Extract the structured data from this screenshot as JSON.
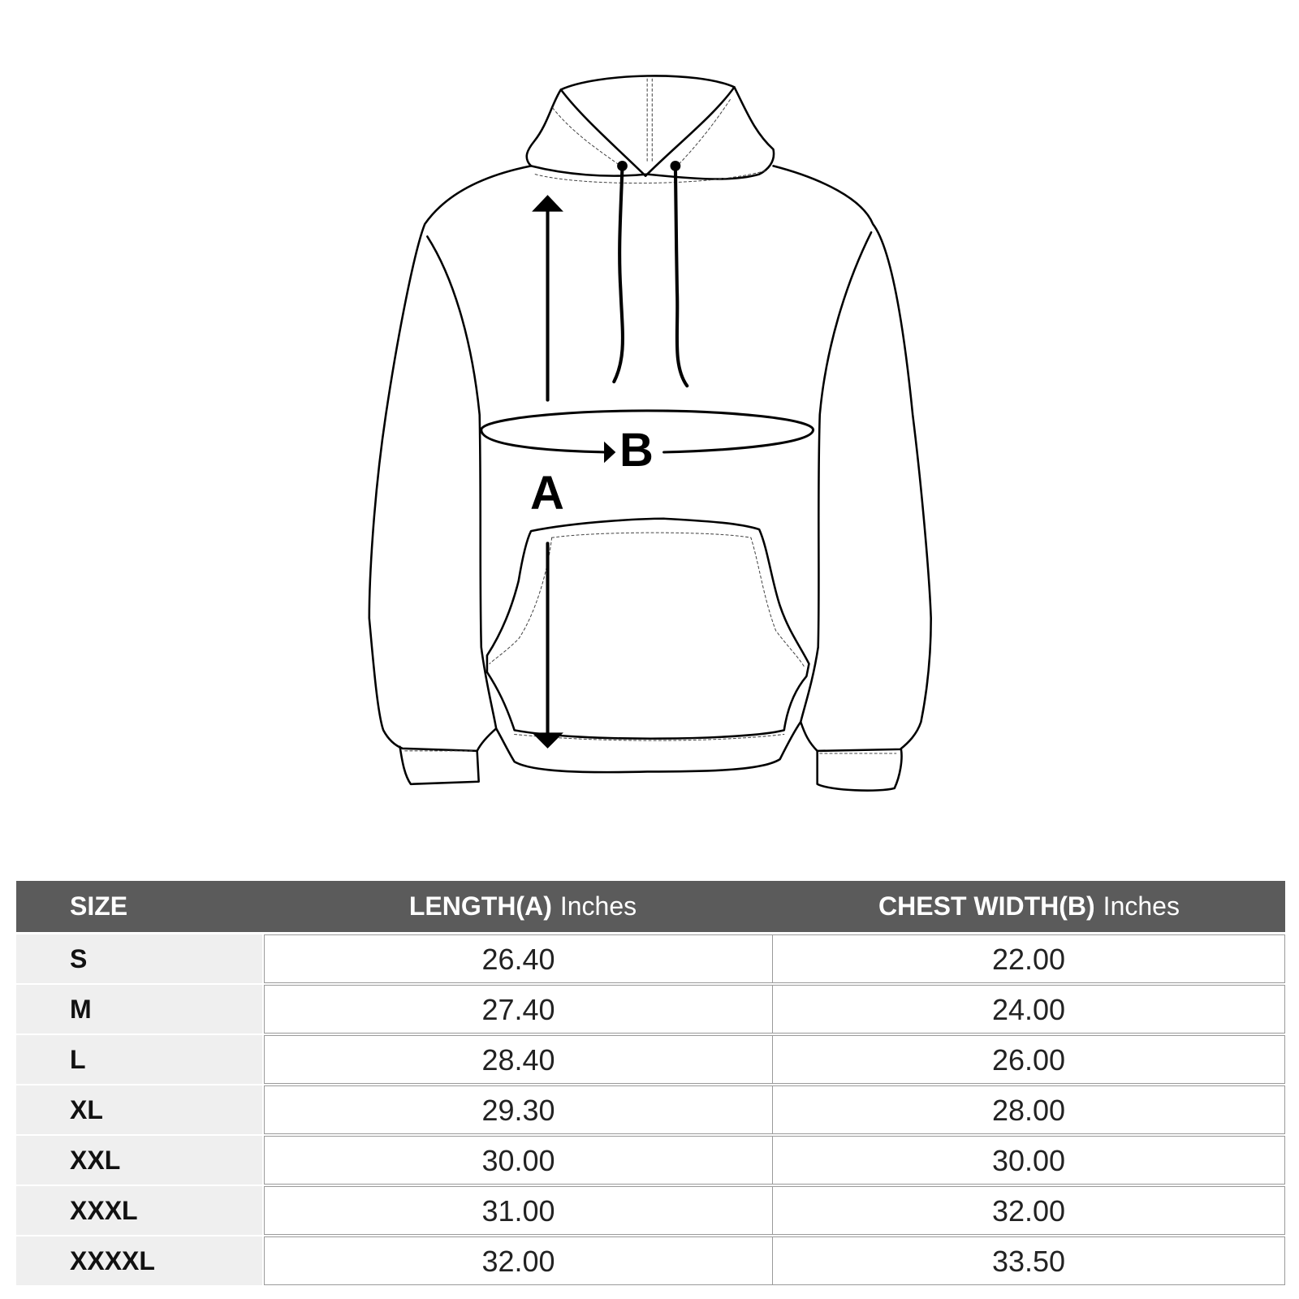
{
  "diagram": {
    "label_a": "A",
    "label_b": "B"
  },
  "table": {
    "headers": {
      "size": "SIZE",
      "length": "LENGTH(A)",
      "length_unit": "Inches",
      "chest": "CHEST WIDTH(B)",
      "chest_unit": "Inches"
    },
    "rows": [
      {
        "size": "S",
        "length": "26.40",
        "chest": "22.00"
      },
      {
        "size": "M",
        "length": "27.40",
        "chest": "24.00"
      },
      {
        "size": "L",
        "length": "28.40",
        "chest": "26.00"
      },
      {
        "size": "XL",
        "length": "29.30",
        "chest": "28.00"
      },
      {
        "size": "XXL",
        "length": "30.00",
        "chest": "30.00"
      },
      {
        "size": "XXXL",
        "length": "31.00",
        "chest": "32.00"
      },
      {
        "size": "XXXXL",
        "length": "32.00",
        "chest": "33.50"
      }
    ]
  },
  "colors": {
    "header_bg": "#5b5b5b",
    "size_col_bg": "#efefef",
    "border": "#9a9a9a"
  }
}
